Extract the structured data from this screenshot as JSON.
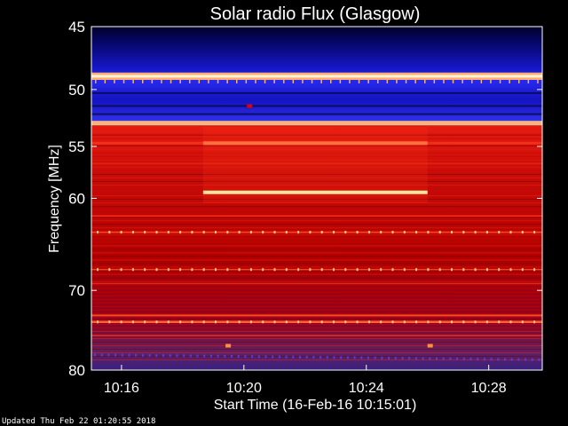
{
  "chart_data": {
    "type": "heatmap",
    "title": "Solar radio Flux (Glasgow)",
    "ylabel": "Frequency [MHz]",
    "xlabel": "Start Time (16-Feb-16 10:15:01)",
    "ylim": [
      45,
      80
    ],
    "y_ticks": [
      45,
      50,
      55,
      60,
      70,
      80
    ],
    "x_ticks": [
      "10:16",
      "10:20",
      "10:24",
      "10:28"
    ],
    "x_tick_minutes": [
      16,
      20,
      24,
      28
    ],
    "xlim_minutes": [
      15.0167,
      29.75
    ],
    "y_scale": "log",
    "colors": {
      "low": "#000033",
      "mid_blue": "#1818d0",
      "mid": "#b80000",
      "high": "#ff4020",
      "peak": "#ffe8a0"
    },
    "bands_mhz": [
      {
        "from": 45.0,
        "to": 48.6,
        "level": "low-blue"
      },
      {
        "from": 48.6,
        "to": 49.2,
        "level": "peak"
      },
      {
        "from": 49.2,
        "to": 52.7,
        "level": "blue"
      },
      {
        "from": 52.7,
        "to": 53.1,
        "level": "peak"
      },
      {
        "from": 53.1,
        "to": 80.0,
        "level": "red"
      }
    ],
    "features": [
      {
        "freq_mhz": 54.7,
        "start": "10:18:40",
        "end": "10:26:00",
        "level": "high"
      },
      {
        "freq_mhz": 59.4,
        "start": "10:18:40",
        "end": "10:26:00",
        "level": "peak"
      }
    ]
  },
  "footer": {
    "updated": "Updated Thu Feb 22 01:20:55 2018"
  }
}
